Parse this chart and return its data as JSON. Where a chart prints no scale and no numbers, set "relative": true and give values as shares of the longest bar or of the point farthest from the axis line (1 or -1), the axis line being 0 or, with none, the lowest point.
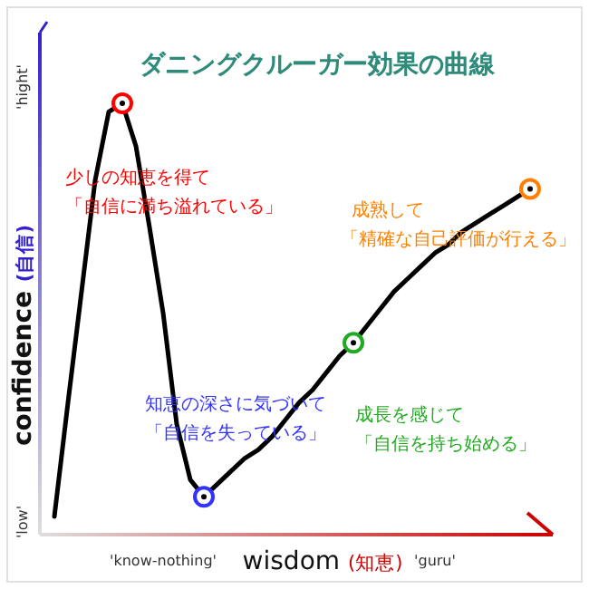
{
  "chart_data": {
    "type": "line",
    "title": "ダニングクルーガー効果の曲線",
    "xlabel": "wisdom (知恵)",
    "ylabel": "confidence (自信)",
    "relative": true,
    "categories": [
      null,
      null,
      null,
      null,
      null,
      null,
      null,
      null,
      "'know-nothing'",
      null,
      null,
      null,
      null,
      null,
      null,
      null,
      null,
      null,
      null,
      null,
      null,
      null,
      null,
      null,
      null,
      null,
      null,
      null,
      "'guru'",
      null,
      null,
      null,
      null,
      null,
      null,
      null
    ],
    "series": [
      {
        "type": "line",
        "color": "#000000",
        "values": [
          0.034,
          0.3,
          0.56,
          0.82,
          0.98,
          1,
          0.9,
          0.71,
          0.51,
          0.25,
          0.12,
          0.08,
          0.11,
          0.14,
          0.17,
          0.19,
          0.22,
          0.26,
          0.3,
          0.33,
          0.37,
          0.41,
          0.44,
          0.48,
          0.52,
          0.56,
          0.59,
          0.62,
          0.65,
          0.67,
          0.7,
          0.72,
          0.74,
          0.76,
          0.78,
          0.8
        ]
      },
      {
        "type": "scatter",
        "marker": "circle",
        "values": [
          null,
          null,
          null,
          null,
          null,
          1,
          null,
          null,
          null,
          null,
          null,
          0.08,
          null,
          null,
          null,
          null,
          null,
          null,
          null,
          null,
          null,
          null,
          0.44,
          null,
          null,
          null,
          null,
          null,
          null,
          null,
          null,
          null,
          null,
          null,
          null,
          0.8
        ],
        "colors": [
          null,
          null,
          null,
          null,
          null,
          "#ff0000",
          null,
          null,
          null,
          null,
          null,
          "#3333ff",
          null,
          null,
          null,
          null,
          null,
          null,
          null,
          null,
          null,
          null,
          "#22aa22",
          null,
          null,
          null,
          null,
          null,
          null,
          null,
          null,
          null,
          null,
          null,
          null,
          "#ff8000"
        ]
      }
    ],
    "annotations": [
      "少しの知恵を得て",
      "「自信に満ち溢れている」",
      "知恵の深さに気づいて",
      "「自信を失っている」",
      "成長を感じて",
      "「自信を持ち始める」",
      "成熟して",
      "「精確な自己評価が行える」",
      "'low'",
      "'hight'"
    ]
  }
}
